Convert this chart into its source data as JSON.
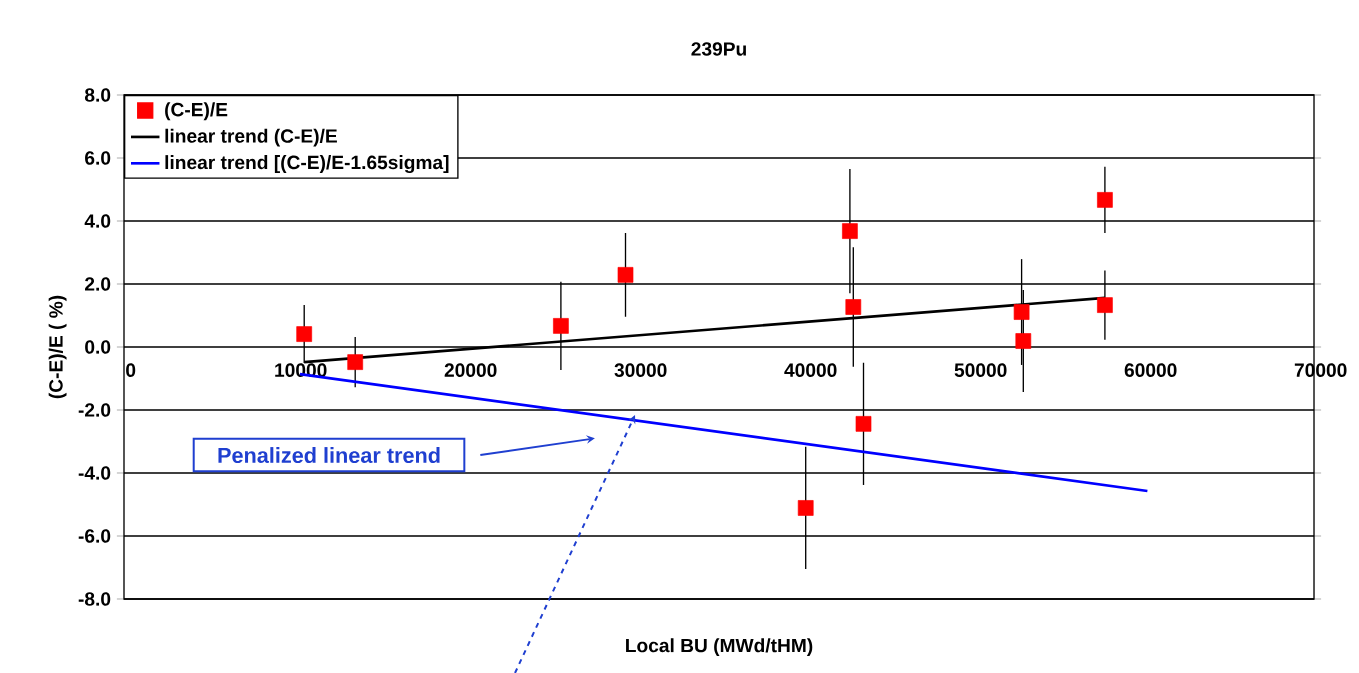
{
  "chart_data": {
    "type": "scatter",
    "title": "239Pu",
    "xlabel": "Local BU (MWd/tHM)",
    "ylabel": "(C-E)/E ( %)",
    "xlim": [
      0,
      70000
    ],
    "xticks": [
      0,
      10000,
      20000,
      30000,
      40000,
      50000,
      60000,
      70000
    ],
    "ylim": [
      -8,
      8
    ],
    "yticks": [
      {
        "value": -8,
        "label": "-8.0"
      },
      {
        "value": -6,
        "label": "-6.0"
      },
      {
        "value": -4,
        "label": "-4.0"
      },
      {
        "value": -2,
        "label": "-2.0"
      },
      {
        "value": 0,
        "label": "0.0"
      },
      {
        "value": 2,
        "label": "2.0"
      },
      {
        "value": 4,
        "label": "4.0"
      },
      {
        "value": 6,
        "label": "6.0"
      },
      {
        "value": 8,
        "label": "8.0"
      }
    ],
    "grid": "y",
    "legend": "top left",
    "series": [
      {
        "name": "(C-E)/E",
        "color": "#ff0000",
        "marker": "square",
        "x": [
          10600,
          13600,
          25700,
          29500,
          42700,
          42900,
          43500,
          40100,
          52800,
          52900,
          57700,
          57700
        ],
        "values": [
          0.41,
          -0.48,
          0.67,
          2.29,
          3.68,
          1.27,
          -2.44,
          -5.11,
          1.11,
          0.19,
          4.67,
          1.33
        ],
        "errors": [
          0.92,
          0.8,
          1.4,
          1.33,
          1.97,
          1.9,
          1.94,
          1.94,
          1.68,
          1.62,
          1.05,
          1.1
        ]
      },
      {
        "name": "linear trend (C-E)/E",
        "type": "line",
        "color": "#000000",
        "x": [
          10600,
          57700
        ],
        "values": [
          -0.48,
          1.56
        ]
      },
      {
        "name": "linear trend [(C-E)/E-1.65sigma]",
        "type": "line",
        "color": "#0000ff",
        "x": [
          10350,
          60200
        ],
        "values": [
          -0.86,
          -4.57
        ]
      }
    ],
    "annotations": [
      "Penalized linear trend"
    ]
  }
}
